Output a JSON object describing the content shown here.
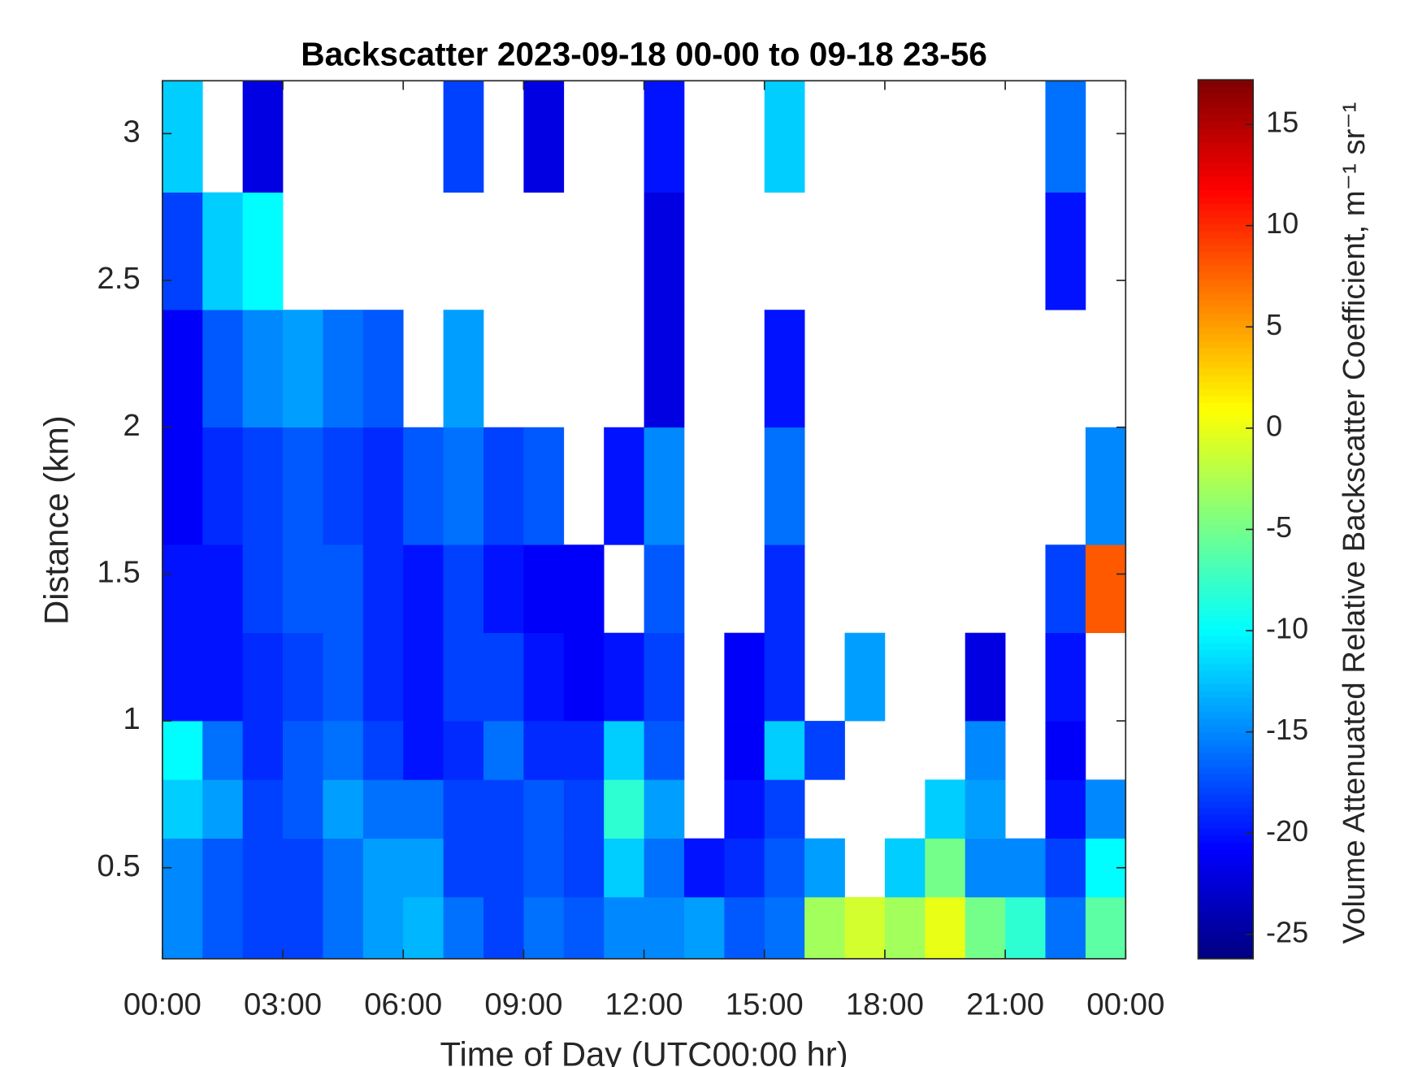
{
  "chart_data": {
    "type": "heatmap",
    "title": "Backscatter 2023-09-18 00-00 to 09-18 23-56",
    "x_label": "Time of Day (UTC00:00 hr)",
    "y_label": "Distance (km)",
    "colorbar_label": "Volume Attenuated Relative Backscatter Coefficient, m⁻¹ sr⁻¹",
    "colormap": "jet",
    "xlim": [
      0,
      24
    ],
    "xticks": [
      {
        "value": 0,
        "label": "00:00"
      },
      {
        "value": 3,
        "label": "03:00"
      },
      {
        "value": 6,
        "label": "06:00"
      },
      {
        "value": 9,
        "label": "09:00"
      },
      {
        "value": 12,
        "label": "12:00"
      },
      {
        "value": 15,
        "label": "15:00"
      },
      {
        "value": 18,
        "label": "18:00"
      },
      {
        "value": 21,
        "label": "21:00"
      },
      {
        "value": 24,
        "label": "00:00"
      }
    ],
    "ylim": [
      0.19,
      3.18
    ],
    "yticks": [
      0.5,
      1,
      1.5,
      2,
      2.5,
      3
    ],
    "clim": [
      -26.2,
      17.2
    ],
    "cticks": [
      -25,
      -20,
      -15,
      -10,
      -5,
      0,
      5,
      10,
      15
    ],
    "x_bins": [
      0,
      1,
      2,
      3,
      4,
      5,
      6,
      7,
      8,
      9,
      10,
      11,
      12,
      13,
      14,
      15,
      16,
      17,
      18,
      19,
      20,
      21,
      22,
      23,
      24
    ],
    "y_bins": [
      0.19,
      0.4,
      0.6,
      0.8,
      1.0,
      1.3,
      1.6,
      2.0,
      2.4,
      2.8,
      3.18
    ],
    "z": [
      [
        -15,
        -17,
        -18,
        -18,
        -16,
        -14,
        -13,
        -16,
        -18,
        -16,
        -17,
        -15,
        -15,
        -14,
        -17,
        -16,
        -3,
        -1,
        -3,
        0,
        -5,
        -8,
        -16,
        -6
      ],
      [
        -15,
        -17,
        -18,
        -18,
        -16,
        -14,
        -14,
        -18,
        -18,
        -17,
        -18,
        -12,
        -16,
        -20,
        -19,
        -17,
        -14,
        null,
        -12,
        -5,
        -15,
        -15,
        -18,
        -10
      ],
      [
        -12,
        -14,
        -18,
        -17,
        -14,
        -16,
        -16,
        -18,
        -18,
        -17,
        -18,
        -8,
        -14,
        null,
        -20,
        -18,
        null,
        null,
        null,
        -12,
        -14,
        null,
        -20,
        -15
      ],
      [
        -10,
        -16,
        -19,
        -17,
        -16,
        -18,
        -20,
        -19,
        -16,
        -19,
        -19,
        -12,
        -17,
        null,
        -21,
        -12,
        -18,
        null,
        null,
        null,
        -15,
        null,
        -21,
        null
      ],
      [
        -20,
        -20,
        -19,
        -18,
        -17,
        -19,
        -20,
        -18,
        -18,
        -20,
        -21,
        -20,
        -18,
        null,
        -21,
        -19,
        null,
        -14,
        null,
        null,
        -22,
        null,
        -20,
        null
      ],
      [
        -20,
        -20,
        -18,
        -17,
        -17,
        -19,
        -20,
        -18,
        -20,
        -21,
        -21,
        null,
        -17,
        null,
        null,
        -19,
        null,
        null,
        null,
        null,
        null,
        null,
        -18,
        8
      ],
      [
        -21,
        -19,
        -18,
        -17,
        -18,
        -19,
        -17,
        -16,
        -18,
        -17,
        null,
        -20,
        -15,
        null,
        null,
        -16,
        null,
        null,
        null,
        null,
        null,
        null,
        null,
        -15
      ],
      [
        -21,
        -17,
        -15,
        -14,
        -16,
        -17,
        null,
        -14,
        null,
        null,
        null,
        null,
        -22,
        null,
        null,
        -20,
        null,
        null,
        null,
        null,
        null,
        null,
        null,
        null
      ],
      [
        -18,
        -12,
        -10,
        null,
        null,
        null,
        null,
        null,
        null,
        null,
        null,
        null,
        -22,
        null,
        null,
        null,
        null,
        null,
        null,
        null,
        null,
        null,
        -20,
        null
      ],
      [
        -12,
        null,
        -22,
        null,
        null,
        null,
        null,
        -18,
        null,
        -22,
        null,
        null,
        -20,
        null,
        null,
        -12,
        null,
        null,
        null,
        null,
        null,
        null,
        -16,
        null
      ]
    ]
  }
}
